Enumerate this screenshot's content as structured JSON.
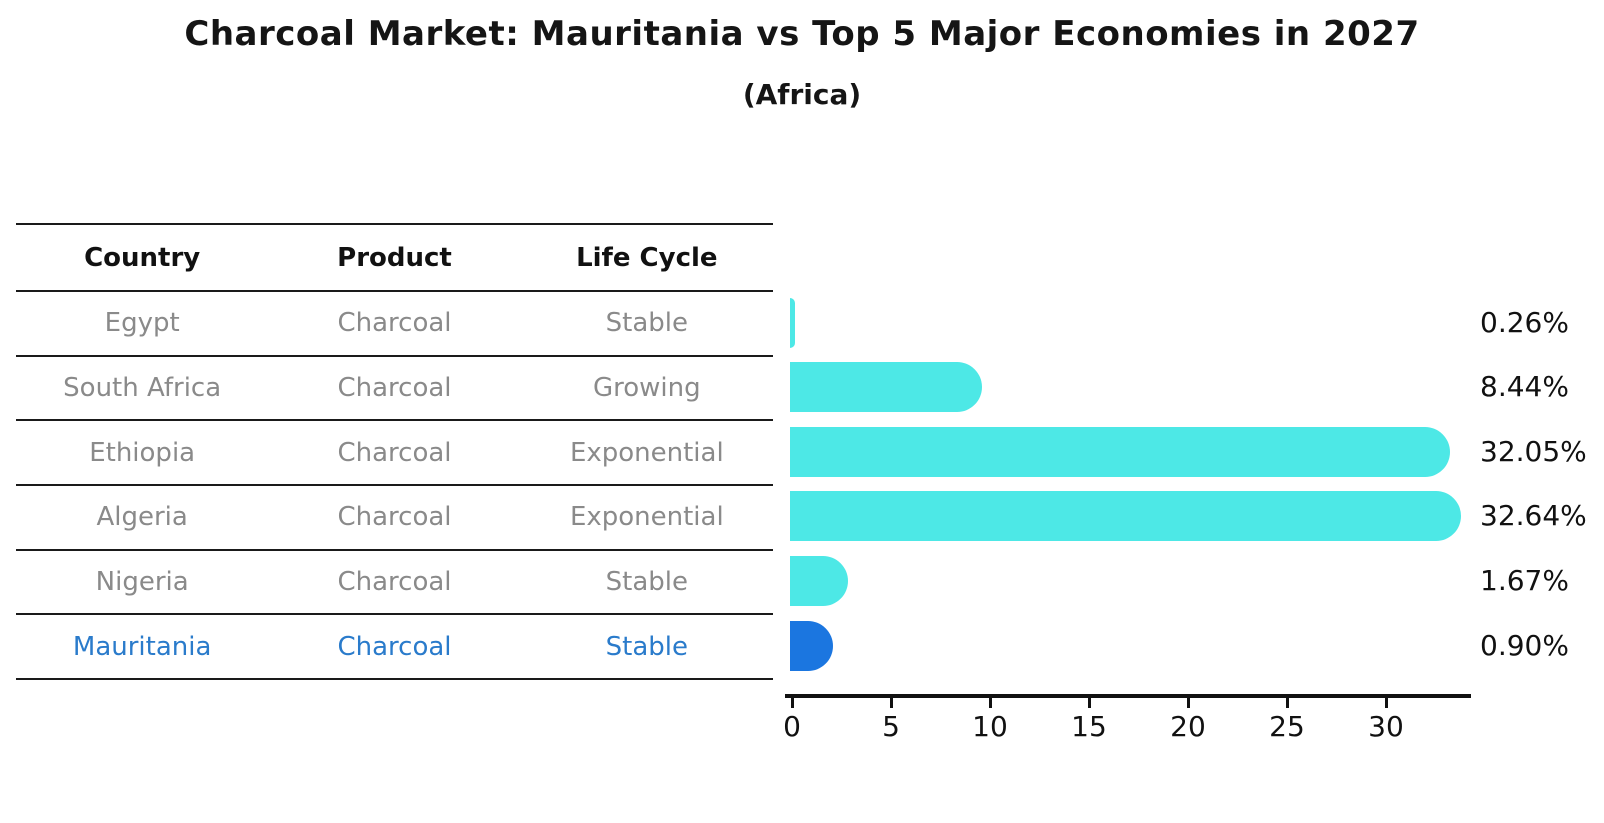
{
  "title": "Charcoal Market: Mauritania vs Top 5 Major Economies in 2027",
  "subtitle": "(Africa)",
  "table": {
    "headers": [
      "Country",
      "Product",
      "Life Cycle"
    ],
    "rows": [
      {
        "country": "Egypt",
        "product": "Charcoal",
        "life_cycle": "Stable",
        "highlight": false
      },
      {
        "country": "South Africa",
        "product": "Charcoal",
        "life_cycle": "Growing",
        "highlight": false
      },
      {
        "country": "Ethiopia",
        "product": "Charcoal",
        "life_cycle": "Exponential",
        "highlight": false
      },
      {
        "country": "Algeria",
        "product": "Charcoal",
        "life_cycle": "Exponential",
        "highlight": false
      },
      {
        "country": "Nigeria",
        "product": "Charcoal",
        "life_cycle": "Stable",
        "highlight": false
      },
      {
        "country": "Mauritania",
        "product": "Charcoal",
        "life_cycle": "Stable",
        "highlight": true
      }
    ]
  },
  "chart_data": {
    "type": "bar",
    "orientation": "horizontal",
    "title": "Charcoal Market: Mauritania vs Top 5 Major Economies in 2027",
    "subtitle": "(Africa)",
    "categories": [
      "Egypt",
      "South Africa",
      "Ethiopia",
      "Algeria",
      "Nigeria",
      "Mauritania"
    ],
    "values": [
      0.26,
      8.44,
      32.05,
      32.64,
      1.67,
      0.9
    ],
    "value_labels": [
      "0.26%",
      "8.44%",
      "32.05%",
      "32.64%",
      "1.67%",
      "0.90%"
    ],
    "x_ticks": [
      "0",
      "5",
      "10",
      "15",
      "20",
      "25",
      "30"
    ],
    "xlim": [
      0,
      33.5
    ],
    "grid": false,
    "legend": "none",
    "highlight_index": 5,
    "colors": {
      "bar_default": "#4de8e6",
      "bar_highlight": "#1b76e0",
      "highlight_text": "#2a7bcb",
      "table_text": "#8a8a8a",
      "axis": "#111111"
    }
  }
}
